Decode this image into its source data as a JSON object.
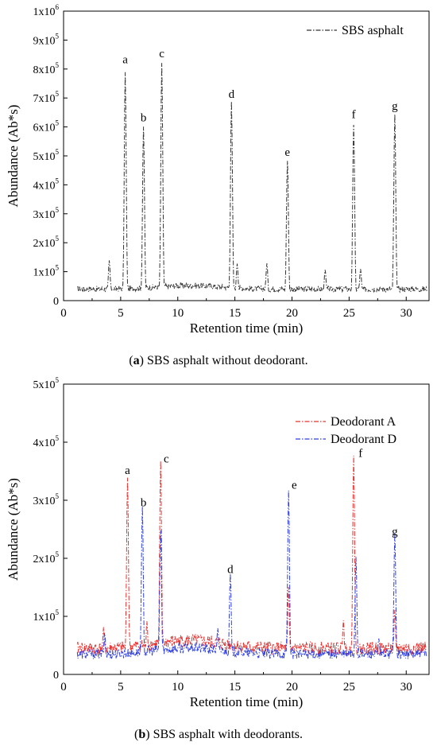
{
  "charts": {
    "a": {
      "caption_label": "(a)",
      "caption_text": " SBS asphalt without deodorant.",
      "chart_data": {
        "type": "line",
        "xlabel": "Retention time (min)",
        "ylabel": "Abundance (Ab*s)",
        "xlim": [
          0,
          32
        ],
        "ylim": [
          0,
          1000000
        ],
        "x_ticks": [
          "0",
          "5",
          "10",
          "15",
          "20",
          "25",
          "30"
        ],
        "y_ticks": [
          {
            "mant": "0",
            "exp": ""
          },
          {
            "mant": "1x10",
            "exp": "5"
          },
          {
            "mant": "2x10",
            "exp": "5"
          },
          {
            "mant": "3x10",
            "exp": "5"
          },
          {
            "mant": "4x10",
            "exp": "5"
          },
          {
            "mant": "5x10",
            "exp": "5"
          },
          {
            "mant": "6x10",
            "exp": "5"
          },
          {
            "mant": "7x10",
            "exp": "5"
          },
          {
            "mant": "8x10",
            "exp": "5"
          },
          {
            "mant": "9x10",
            "exp": "5"
          },
          {
            "mant": "1x10",
            "exp": "6"
          }
        ],
        "legend_position": "top-right",
        "grid": false,
        "series": [
          {
            "name": "SBS asphalt",
            "color": "#333333",
            "dash": "dash-dot",
            "baseline": 40000,
            "peaks": [
              {
                "x": 4.0,
                "y": 130000
              },
              {
                "x": 5.4,
                "y": 780000
              },
              {
                "x": 7.0,
                "y": 590000
              },
              {
                "x": 8.6,
                "y": 810000
              },
              {
                "x": 14.7,
                "y": 680000
              },
              {
                "x": 15.2,
                "y": 120000
              },
              {
                "x": 17.8,
                "y": 120000
              },
              {
                "x": 19.6,
                "y": 475000
              },
              {
                "x": 22.9,
                "y": 100000
              },
              {
                "x": 25.4,
                "y": 600000
              },
              {
                "x": 26.0,
                "y": 100000
              },
              {
                "x": 29.0,
                "y": 635000
              }
            ]
          }
        ],
        "annotations": [
          {
            "text": "a",
            "x": 5.4,
            "y": 820000
          },
          {
            "text": "b",
            "x": 7.0,
            "y": 620000
          },
          {
            "text": "c",
            "x": 8.6,
            "y": 840000
          },
          {
            "text": "d",
            "x": 14.7,
            "y": 700000
          },
          {
            "text": "e",
            "x": 19.6,
            "y": 500000
          },
          {
            "text": "f",
            "x": 25.4,
            "y": 630000
          },
          {
            "text": "g",
            "x": 29.0,
            "y": 660000
          }
        ]
      }
    },
    "b": {
      "caption_label": "(b)",
      "caption_text": " SBS asphalt with deodorants.",
      "chart_data": {
        "type": "line",
        "xlabel": "Retention time (min)",
        "ylabel": "Abundance (Ab*s)",
        "xlim": [
          0,
          32
        ],
        "ylim": [
          0,
          500000
        ],
        "x_ticks": [
          "0",
          "5",
          "10",
          "15",
          "20",
          "25",
          "30"
        ],
        "y_ticks": [
          {
            "mant": "0",
            "exp": ""
          },
          {
            "mant": "1x10",
            "exp": "5"
          },
          {
            "mant": "2x10",
            "exp": "5"
          },
          {
            "mant": "3x10",
            "exp": "5"
          },
          {
            "mant": "4x10",
            "exp": "5"
          },
          {
            "mant": "5x10",
            "exp": "5"
          }
        ],
        "legend_position": "top-right",
        "grid": false,
        "series": [
          {
            "name": "Deodorant A",
            "color": "#e8312f",
            "dash": "dash-dot",
            "baseline": 45000,
            "peaks": [
              {
                "x": 3.5,
                "y": 70000
              },
              {
                "x": 5.6,
                "y": 330000
              },
              {
                "x": 7.3,
                "y": 80000
              },
              {
                "x": 8.5,
                "y": 355000
              },
              {
                "x": 19.7,
                "y": 140000
              },
              {
                "x": 24.5,
                "y": 85000
              },
              {
                "x": 25.4,
                "y": 370000
              },
              {
                "x": 29.0,
                "y": 100000
              }
            ]
          },
          {
            "name": "Deodorant D",
            "color": "#2f3fe0",
            "dash": "dash-dot",
            "baseline": 35000,
            "peaks": [
              {
                "x": 3.6,
                "y": 65000
              },
              {
                "x": 6.9,
                "y": 280000
              },
              {
                "x": 8.5,
                "y": 240000
              },
              {
                "x": 13.5,
                "y": 70000
              },
              {
                "x": 14.6,
                "y": 165000
              },
              {
                "x": 19.7,
                "y": 310000
              },
              {
                "x": 25.6,
                "y": 195000
              },
              {
                "x": 27.6,
                "y": 55000
              },
              {
                "x": 29.0,
                "y": 235000
              }
            ]
          }
        ],
        "annotations": [
          {
            "text": "a",
            "x": 5.6,
            "y": 345000
          },
          {
            "text": "b",
            "x": 7.0,
            "y": 290000
          },
          {
            "text": "c",
            "x": 9.0,
            "y": 365000
          },
          {
            "text": "d",
            "x": 14.6,
            "y": 175000
          },
          {
            "text": "e",
            "x": 20.2,
            "y": 320000
          },
          {
            "text": "f",
            "x": 26.0,
            "y": 375000
          },
          {
            "text": "g",
            "x": 29.0,
            "y": 240000
          }
        ]
      }
    }
  }
}
